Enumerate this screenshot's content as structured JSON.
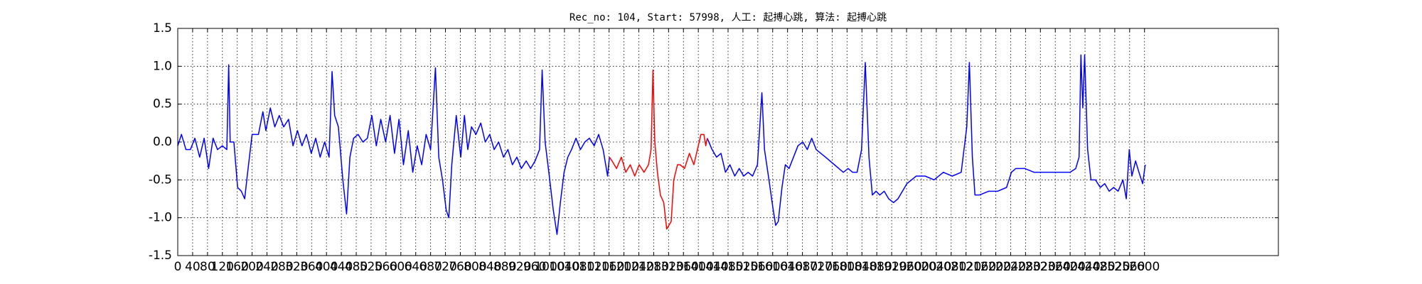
{
  "chart_data": {
    "type": "line",
    "title": "Rec_no: 104, Start: 57998, 人工: 起搏心跳, 算法: 起搏心跳",
    "xlim": [
      0,
      2960
    ],
    "xticks": [
      0,
      40,
      80,
      120,
      160,
      200,
      240,
      280,
      320,
      360,
      400,
      440,
      480,
      520,
      560,
      600,
      640,
      680,
      720,
      760,
      800,
      840,
      880,
      920,
      960,
      1000,
      1040,
      1080,
      1120,
      1160,
      1200,
      1240,
      1280,
      1320,
      1360,
      1400,
      1440,
      1480,
      1520,
      1560,
      1600,
      1640,
      1680,
      1720,
      1760,
      1800,
      1840,
      1880,
      1920,
      1960,
      2000,
      2040,
      2080,
      2120,
      2160,
      2200,
      2240,
      2280,
      2320,
      2360,
      2400,
      2440,
      2480,
      2520,
      2560,
      2600
    ],
    "ylim": [
      -1.5,
      1.5
    ],
    "yticks": [
      -1.5,
      {
        "value": -1,
        "label": "-1.0"
      },
      -0.5,
      {
        "value": 0,
        "label": "0.0"
      },
      0.5,
      {
        "value": 1,
        "label": "1.0"
      },
      1.5
    ],
    "grid": true,
    "series": [
      {
        "color": "#0000ff",
        "x": [
          0,
          10,
          22,
          34,
          46,
          59,
          71,
          83,
          95,
          107,
          120,
          132,
          137,
          141,
          151,
          161,
          171,
          180,
          188,
          200,
          217,
          229,
          237,
          249,
          261,
          273,
          285,
          298,
          310,
          322,
          334,
          346,
          359,
          371,
          383,
          395,
          407,
          415,
          422,
          432,
          444,
          454,
          463,
          473,
          485,
          498,
          510,
          522,
          534,
          546,
          559,
          571,
          583,
          595,
          607,
          620,
          632,
          644,
          656,
          668,
          680,
          693,
          702,
          712,
          722,
          729,
          737,
          749,
          761,
          771,
          780,
          790,
          802,
          815,
          827,
          839,
          851,
          863,
          876,
          888,
          900,
          912,
          924,
          937,
          949,
          961,
          973,
          980,
          988,
          998,
          1010,
          1020,
          1029,
          1039,
          1049,
          1059,
          1071,
          1083,
          1095,
          1107,
          1120,
          1132,
          1144,
          1156,
          1161,
          1290,
          1424,
          1437,
          1449,
          1461,
          1473,
          1485,
          1498,
          1510,
          1522,
          1534,
          1546,
          1559,
          1571,
          1578,
          1590,
          1600,
          1608,
          1615,
          1625,
          1634,
          1644,
          1656,
          1668,
          1681,
          1693,
          1705,
          1717,
          1742,
          1766,
          1778,
          1790,
          1803,
          1815,
          1827,
          1839,
          1849,
          1859,
          1868,
          1878,
          1888,
          1900,
          1912,
          1925,
          1937,
          1961,
          1986,
          2010,
          2034,
          2059,
          2083,
          2107,
          2122,
          2129,
          2137,
          2144,
          2156,
          2181,
          2205,
          2229,
          2242,
          2254,
          2278,
          2303,
          2327,
          2351,
          2376,
          2400,
          2415,
          2424,
          2429,
          2434,
          2439,
          2447,
          2456,
          2468,
          2481,
          2493,
          2505,
          2517,
          2529,
          2542,
          2551,
          2559,
          2566,
          2576,
          2585,
          2595,
          2602
        ],
        "values": [
          -0.05,
          0.1,
          -0.1,
          -0.1,
          0.05,
          -0.2,
          0.05,
          -0.35,
          0.05,
          -0.1,
          -0.05,
          -0.1,
          1.02,
          0.0,
          0.0,
          -0.6,
          -0.65,
          -0.75,
          -0.4,
          0.1,
          0.1,
          0.4,
          0.15,
          0.45,
          0.2,
          0.35,
          0.2,
          0.3,
          -0.05,
          0.15,
          -0.05,
          0.1,
          -0.15,
          0.05,
          -0.2,
          0.0,
          -0.2,
          0.93,
          0.35,
          0.2,
          -0.5,
          -0.95,
          -0.2,
          0.05,
          0.1,
          0.0,
          0.05,
          0.35,
          -0.05,
          0.3,
          0.0,
          0.35,
          -0.15,
          0.3,
          -0.3,
          0.15,
          -0.4,
          -0.05,
          -0.3,
          0.1,
          -0.1,
          0.98,
          -0.2,
          -0.5,
          -0.9,
          -1.0,
          -0.3,
          0.35,
          -0.2,
          0.35,
          -0.1,
          0.2,
          0.1,
          0.25,
          0.0,
          0.1,
          -0.1,
          0.0,
          -0.2,
          -0.1,
          -0.3,
          -0.2,
          -0.35,
          -0.25,
          -0.35,
          -0.25,
          -0.1,
          0.95,
          0.0,
          -0.4,
          -0.9,
          -1.22,
          -0.8,
          -0.4,
          -0.2,
          -0.1,
          0.05,
          -0.1,
          0.0,
          0.05,
          -0.05,
          0.1,
          -0.1,
          -0.45,
          -0.2,
          null,
          0.05,
          -0.1,
          -0.2,
          -0.15,
          -0.4,
          -0.3,
          -0.45,
          -0.35,
          -0.45,
          -0.4,
          -0.45,
          -0.3,
          0.65,
          -0.1,
          -0.5,
          -0.85,
          -1.1,
          -1.05,
          -0.6,
          -0.3,
          -0.35,
          -0.2,
          -0.05,
          0.0,
          -0.1,
          0.05,
          -0.1,
          -0.2,
          -0.3,
          -0.35,
          -0.4,
          -0.35,
          -0.4,
          -0.4,
          -0.1,
          1.05,
          -0.2,
          -0.7,
          -0.65,
          -0.7,
          -0.65,
          -0.75,
          -0.8,
          -0.75,
          -0.55,
          -0.45,
          -0.45,
          -0.5,
          -0.4,
          -0.45,
          -0.4,
          0.2,
          1.05,
          -0.2,
          -0.7,
          -0.7,
          -0.65,
          -0.65,
          -0.6,
          -0.4,
          -0.35,
          -0.35,
          -0.4,
          -0.4,
          -0.4,
          -0.4,
          -0.4,
          -0.35,
          -0.2,
          1.15,
          0.45,
          1.15,
          -0.1,
          -0.5,
          -0.5,
          -0.6,
          -0.55,
          -0.65,
          -0.6,
          -0.65,
          -0.5,
          -0.75,
          -0.1,
          -0.45,
          -0.25,
          -0.4,
          -0.55,
          -0.3
        ]
      },
      {
        "color": "#ff0000",
        "x": [
          1161,
          1168,
          1180,
          1193,
          1205,
          1217,
          1229,
          1241,
          1254,
          1266,
          1273,
          1278,
          1283,
          1290,
          1298,
          1307,
          1315,
          1327,
          1334,
          1344,
          1351,
          1363,
          1376,
          1388,
          1400,
          1407,
          1415,
          1420,
          1424
        ],
        "values": [
          -0.2,
          -0.25,
          -0.35,
          -0.2,
          -0.4,
          -0.3,
          -0.45,
          -0.3,
          -0.4,
          -0.3,
          -0.1,
          0.95,
          0.0,
          -0.4,
          -0.7,
          -0.8,
          -1.15,
          -1.05,
          -0.5,
          -0.3,
          -0.3,
          -0.35,
          -0.15,
          -0.3,
          -0.05,
          0.1,
          0.1,
          -0.05,
          0.05
        ]
      }
    ]
  }
}
